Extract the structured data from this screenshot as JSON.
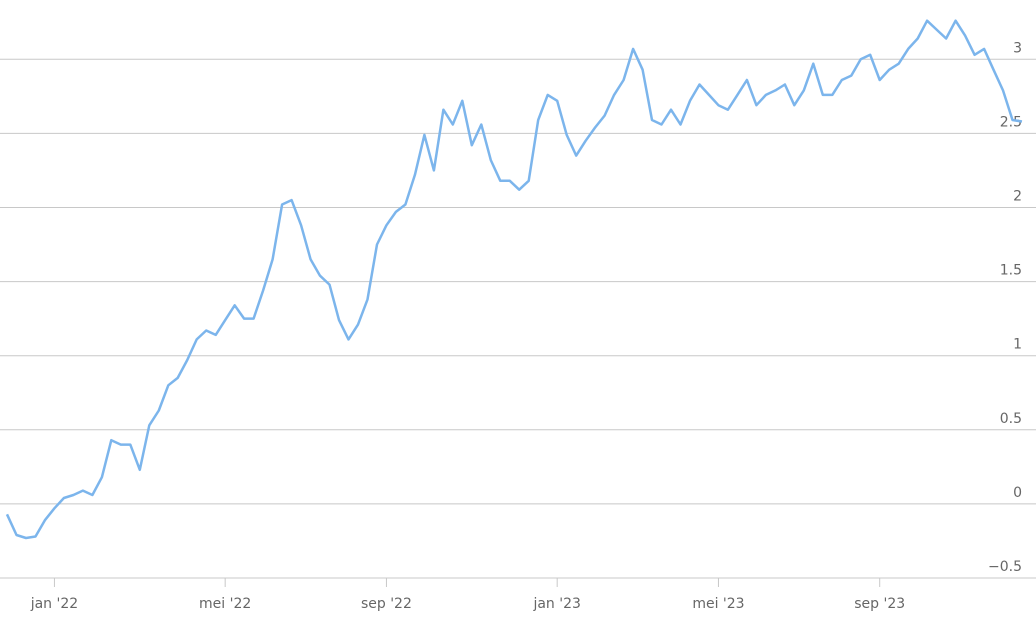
{
  "chart_data": {
    "type": "line",
    "categories": [
      null,
      null,
      null,
      null,
      null,
      "jan '22",
      null,
      null,
      null,
      null,
      null,
      null,
      null,
      null,
      null,
      null,
      null,
      null,
      null,
      null,
      null,
      null,
      null,
      "mei '22",
      null,
      null,
      null,
      null,
      null,
      null,
      null,
      null,
      null,
      null,
      null,
      null,
      null,
      null,
      null,
      null,
      "sep '22",
      null,
      null,
      null,
      null,
      null,
      null,
      null,
      null,
      null,
      null,
      null,
      null,
      null,
      null,
      null,
      null,
      null,
      "jan '23",
      null,
      null,
      null,
      null,
      null,
      null,
      null,
      null,
      null,
      null,
      null,
      null,
      null,
      null,
      null,
      null,
      "mei '23",
      null,
      null,
      null,
      null,
      null,
      null,
      null,
      null,
      null,
      null,
      null,
      null,
      null,
      null,
      null,
      null,
      "sep '23",
      null,
      null,
      null,
      null,
      null,
      null,
      null,
      null,
      null,
      null,
      null,
      null,
      null,
      null,
      null
    ],
    "values": [
      -0.07,
      -0.21,
      -0.23,
      -0.22,
      -0.11,
      -0.03,
      0.04,
      0.06,
      0.09,
      0.06,
      0.18,
      0.43,
      0.4,
      0.4,
      0.23,
      0.53,
      0.63,
      0.8,
      0.85,
      0.97,
      1.11,
      1.17,
      1.14,
      1.24,
      1.34,
      1.25,
      1.25,
      1.44,
      1.65,
      2.02,
      2.05,
      1.88,
      1.65,
      1.54,
      1.48,
      1.24,
      1.11,
      1.21,
      1.38,
      1.75,
      1.88,
      1.97,
      2.02,
      2.22,
      2.49,
      2.25,
      2.66,
      2.56,
      2.72,
      2.42,
      2.56,
      2.32,
      2.18,
      2.18,
      2.12,
      2.18,
      2.59,
      2.76,
      2.72,
      2.49,
      2.35,
      2.45,
      2.54,
      2.62,
      2.76,
      2.86,
      3.07,
      2.93,
      2.59,
      2.56,
      2.66,
      2.56,
      2.72,
      2.83,
      2.76,
      2.69,
      2.66,
      2.76,
      2.86,
      2.69,
      2.76,
      2.79,
      2.83,
      2.69,
      2.79,
      2.97,
      2.76,
      2.76,
      2.86,
      2.89,
      3.0,
      3.03,
      2.86,
      2.93,
      2.97,
      3.07,
      3.14,
      3.26,
      3.2,
      3.14,
      3.26,
      3.16,
      3.03,
      3.07,
      2.93,
      2.79,
      2.59,
      2.58
    ],
    "color": "#7cb5ec",
    "ylim": [
      -0.5,
      3.4
    ],
    "yticks": [
      {
        "value": -0.5,
        "label": "−0.5"
      },
      0,
      0.5,
      1,
      1.5,
      2,
      2.5,
      3
    ],
    "grid": true
  }
}
